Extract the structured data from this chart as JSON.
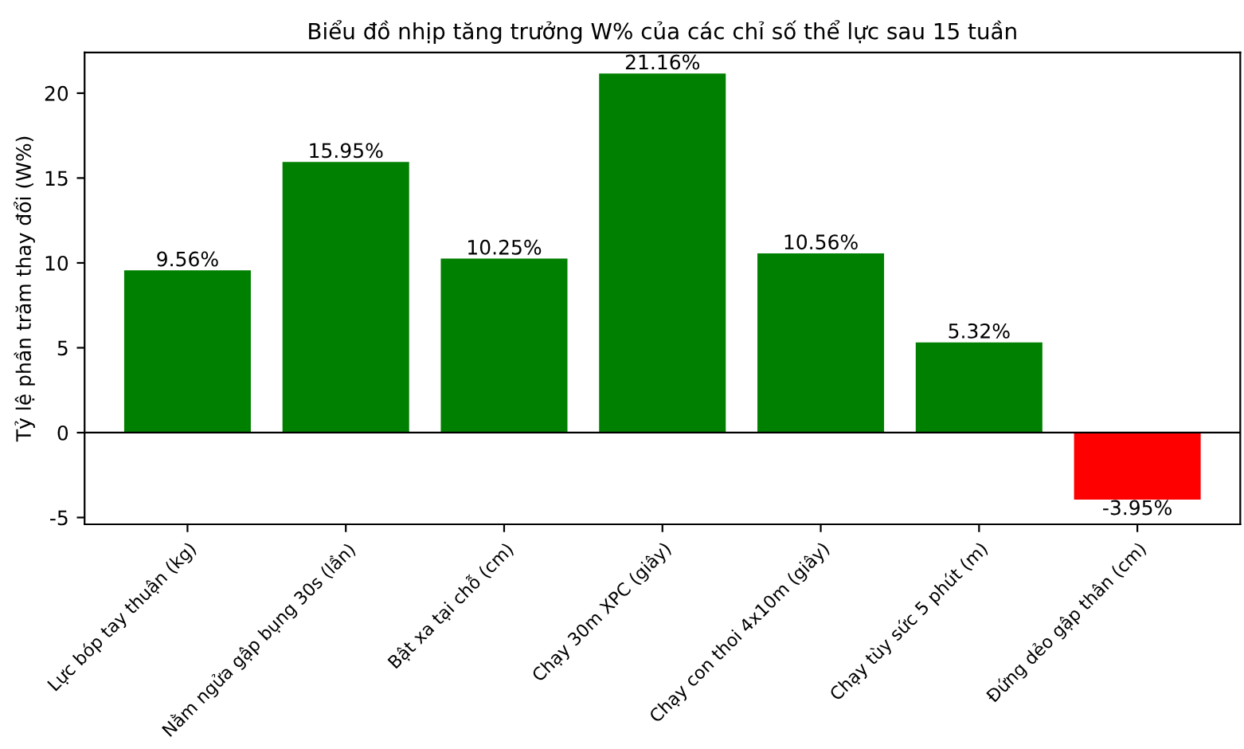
{
  "chart_data": {
    "type": "bar",
    "title": "Biểu đồ nhịp tăng trưởng W% của các chỉ số thể lực sau 15 tuần",
    "ylabel": "Tỷ lệ phần trăm thay đổi (W%)",
    "categories": [
      "Lực bóp tay thuận (kg)",
      "Nằm ngửa gập bụng 30s (lần)",
      "Bật xa tại chỗ (cm)",
      "Chạy 30m XPC (giây)",
      "Chạy con thoi 4x10m (giây)",
      "Chạy tùy sức 5 phút (m)",
      "Đứng dẻo gập thân (cm)"
    ],
    "values": [
      9.56,
      15.95,
      10.25,
      21.16,
      10.56,
      5.32,
      -3.95
    ],
    "colors": [
      "#008000",
      "#008000",
      "#008000",
      "#008000",
      "#008000",
      "#008000",
      "#ff0000"
    ],
    "value_labels": [
      "9.56%",
      "15.95%",
      "10.25%",
      "21.16%",
      "10.56%",
      "5.32%",
      "-3.95%"
    ],
    "ylim": [
      -5.4,
      22.4
    ],
    "yticks": [
      -5,
      0,
      5,
      10,
      15,
      20
    ],
    "ref_lines": [
      {
        "axis": "y",
        "value": 0,
        "color": "#000000"
      }
    ],
    "grid": false
  }
}
